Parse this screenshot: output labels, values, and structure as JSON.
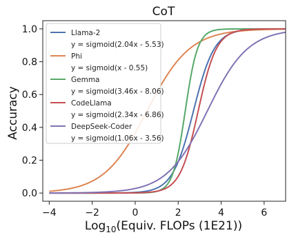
{
  "chart_data": {
    "type": "line",
    "title": "CoT",
    "xlabel_prefix": "Log",
    "xlabel_sub": "10",
    "xlabel_suffix": "(Equiv. FLOPs (1E21))",
    "ylabel": "Accuracy",
    "xlim": [
      -4.3,
      7.0
    ],
    "ylim": [
      -0.05,
      1.05
    ],
    "xticks": [
      -4,
      -2,
      0,
      2,
      4,
      6
    ],
    "xtick_labels": [
      "−4",
      "−2",
      "0",
      "2",
      "4",
      "6"
    ],
    "yticks": [
      0.0,
      0.2,
      0.4,
      0.6,
      0.8,
      1.0
    ],
    "ytick_labels": [
      "0.0",
      "0.2",
      "0.4",
      "0.6",
      "0.8",
      "1.0"
    ],
    "curve_x_range": [
      -4.0,
      7.0
    ],
    "legend_position": "upper-left",
    "series": [
      {
        "name": "Llama-2",
        "formula": "y = sigmoid(2.04x - 5.53)",
        "a": 2.04,
        "b": -5.53,
        "color": "#4c72b0"
      },
      {
        "name": "Phi",
        "formula": "y = sigmoid(x - 0.55)",
        "a": 1.0,
        "b": -0.55,
        "color": "#dd8452"
      },
      {
        "name": "Gemma",
        "formula": "y = sigmoid(3.46x - 8.06)",
        "a": 3.46,
        "b": -8.06,
        "color": "#55a868"
      },
      {
        "name": "CodeLlama",
        "formula": "y = sigmoid(2.34x - 6.86)",
        "a": 2.34,
        "b": -6.86,
        "color": "#c44e52"
      },
      {
        "name": "DeepSeek-Coder",
        "formula": "y = sigmoid(1.06x - 3.56)",
        "a": 1.06,
        "b": -3.56,
        "color": "#8172b3"
      }
    ]
  }
}
